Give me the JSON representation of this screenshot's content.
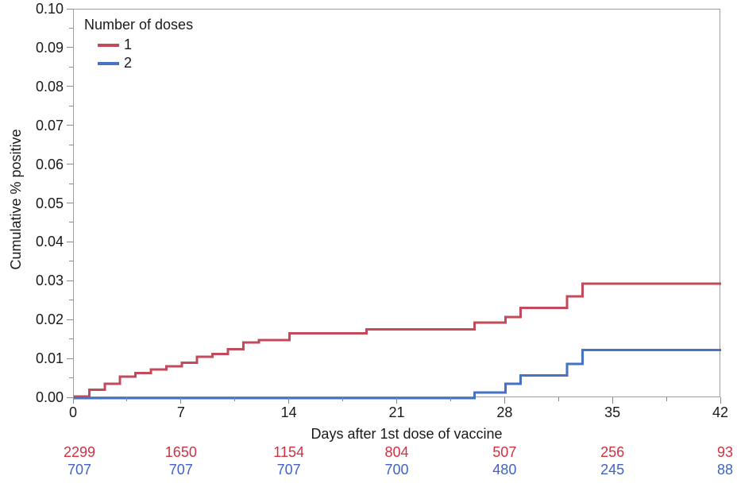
{
  "chart_data": {
    "type": "line",
    "subtype": "step",
    "title": "",
    "xlabel": "Days after 1st dose of vaccine",
    "ylabel": "Cumulative % positive",
    "xlim": [
      0,
      42
    ],
    "ylim": [
      0,
      0.1
    ],
    "xtick_labels": [
      "0",
      "7",
      "14",
      "21",
      "28",
      "35",
      "42"
    ],
    "ytick_labels": [
      "0.00",
      "0.01",
      "0.02",
      "0.03",
      "0.04",
      "0.05",
      "0.06",
      "0.07",
      "0.08",
      "0.09",
      "0.10"
    ],
    "minor_ticks": "midpoints",
    "grid": false,
    "frame": true,
    "axis_color": "#9e9e9e",
    "tick_color": "#8a8a8a",
    "text_color": "#1a1a1a",
    "legend": {
      "title": "Number of doses",
      "position": "top-left"
    },
    "series": [
      {
        "name": "1",
        "color": "#c24a5b",
        "steps": [
          [
            0,
            0.0004
          ],
          [
            1,
            0.0021
          ],
          [
            2,
            0.0037
          ],
          [
            3,
            0.0055
          ],
          [
            4,
            0.0064
          ],
          [
            5,
            0.0074
          ],
          [
            6,
            0.0082
          ],
          [
            7,
            0.0091
          ],
          [
            8,
            0.0106
          ],
          [
            9,
            0.0114
          ],
          [
            10,
            0.0126
          ],
          [
            11,
            0.0143
          ],
          [
            12,
            0.0149
          ],
          [
            14,
            0.0167
          ],
          [
            19,
            0.0177
          ],
          [
            26,
            0.0194
          ],
          [
            28,
            0.0209
          ],
          [
            29,
            0.0232
          ],
          [
            32,
            0.0262
          ],
          [
            33,
            0.0294
          ],
          [
            42,
            0.0294
          ]
        ]
      },
      {
        "name": "2",
        "color": "#4472c4",
        "steps": [
          [
            0,
            0.0
          ],
          [
            26,
            0.0014
          ],
          [
            28,
            0.0037
          ],
          [
            29,
            0.0058
          ],
          [
            32,
            0.0088
          ],
          [
            33,
            0.0124
          ],
          [
            42,
            0.0124
          ]
        ]
      }
    ],
    "at_risk": {
      "days": [
        0,
        7,
        14,
        21,
        28,
        35,
        42
      ],
      "rows": [
        {
          "series": "1",
          "color": "#d13043",
          "values": [
            "2299",
            "1650",
            "1154",
            "804",
            "507",
            "256",
            "93"
          ]
        },
        {
          "series": "2",
          "color": "#3f63c6",
          "values": [
            "707",
            "707",
            "707",
            "700",
            "480",
            "245",
            "88"
          ]
        }
      ]
    }
  }
}
